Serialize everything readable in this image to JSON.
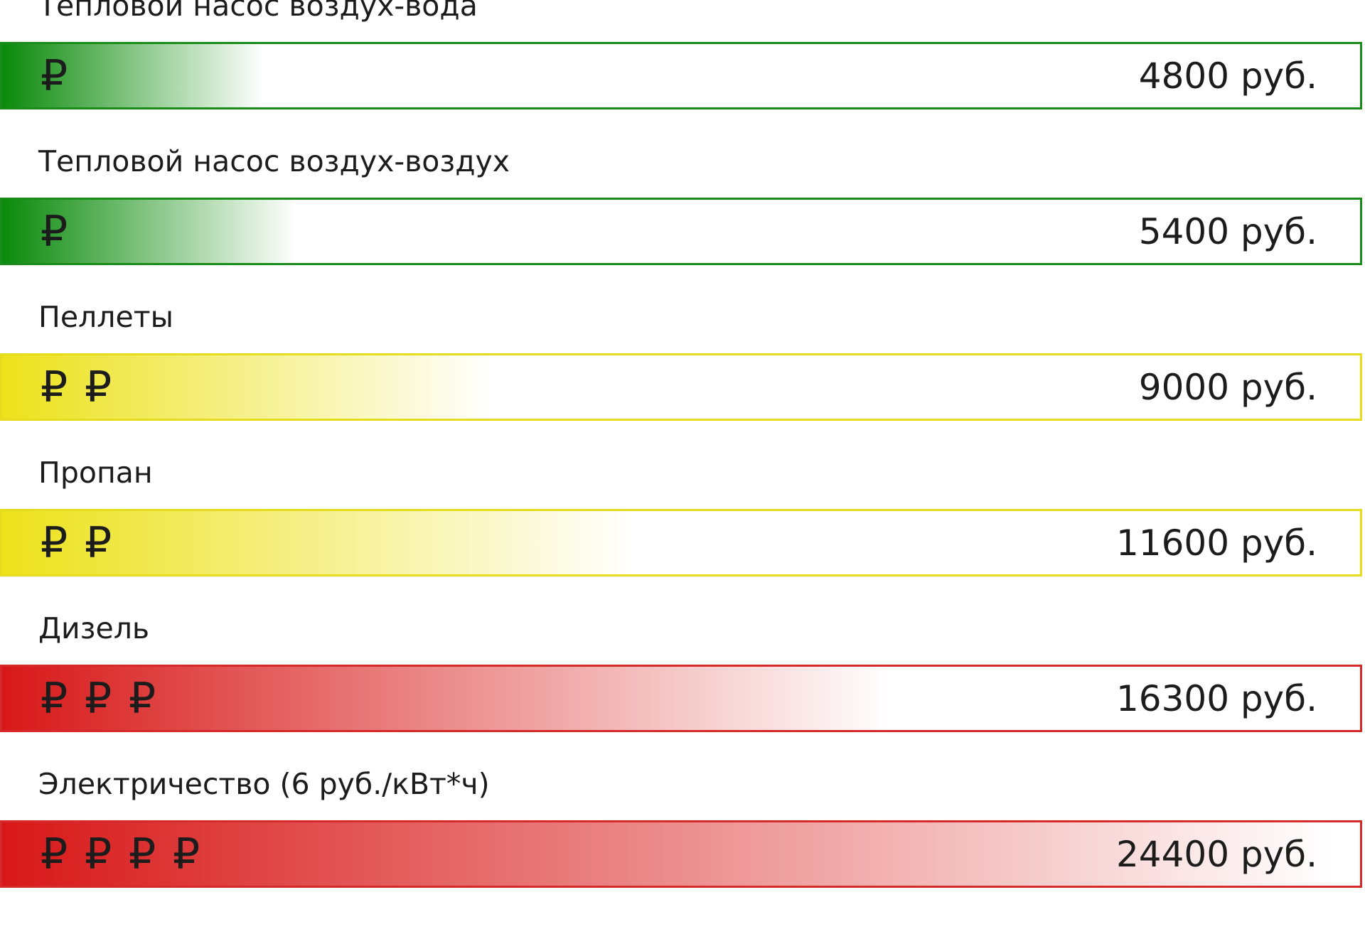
{
  "chart_data": {
    "type": "bar",
    "title": "",
    "xlabel": "",
    "ylabel": "",
    "categories": [
      "Тепловой насос воздух-вода",
      "Тепловой насос воздух-воздух",
      "Пеллеты",
      "Пропан",
      "Дизель",
      "Электричество (6 руб./кВт*ч)"
    ],
    "values": [
      4800,
      5400,
      9000,
      11600,
      16300,
      24400
    ],
    "value_labels": [
      "4800 руб.",
      "5400 руб.",
      "9000 руб.",
      "11600 руб.",
      "16300 руб.",
      "24400 руб."
    ],
    "ruble_counts": [
      1,
      1,
      2,
      2,
      3,
      4
    ],
    "ruble_symbol": "₽",
    "xlim": [
      0,
      25000
    ],
    "bar_colors": [
      "#0a8a0a",
      "#0a8a0a",
      "#ece21a",
      "#ece21a",
      "#d81818",
      "#d81818"
    ],
    "border_colors": [
      "#1a8c1a",
      "#1a8c1a",
      "#e6dc1e",
      "#e6dc1e",
      "#d62a2a",
      "#d62a2a"
    ],
    "icon": "ruble-sign-icon",
    "grid": false,
    "legend": "none"
  }
}
